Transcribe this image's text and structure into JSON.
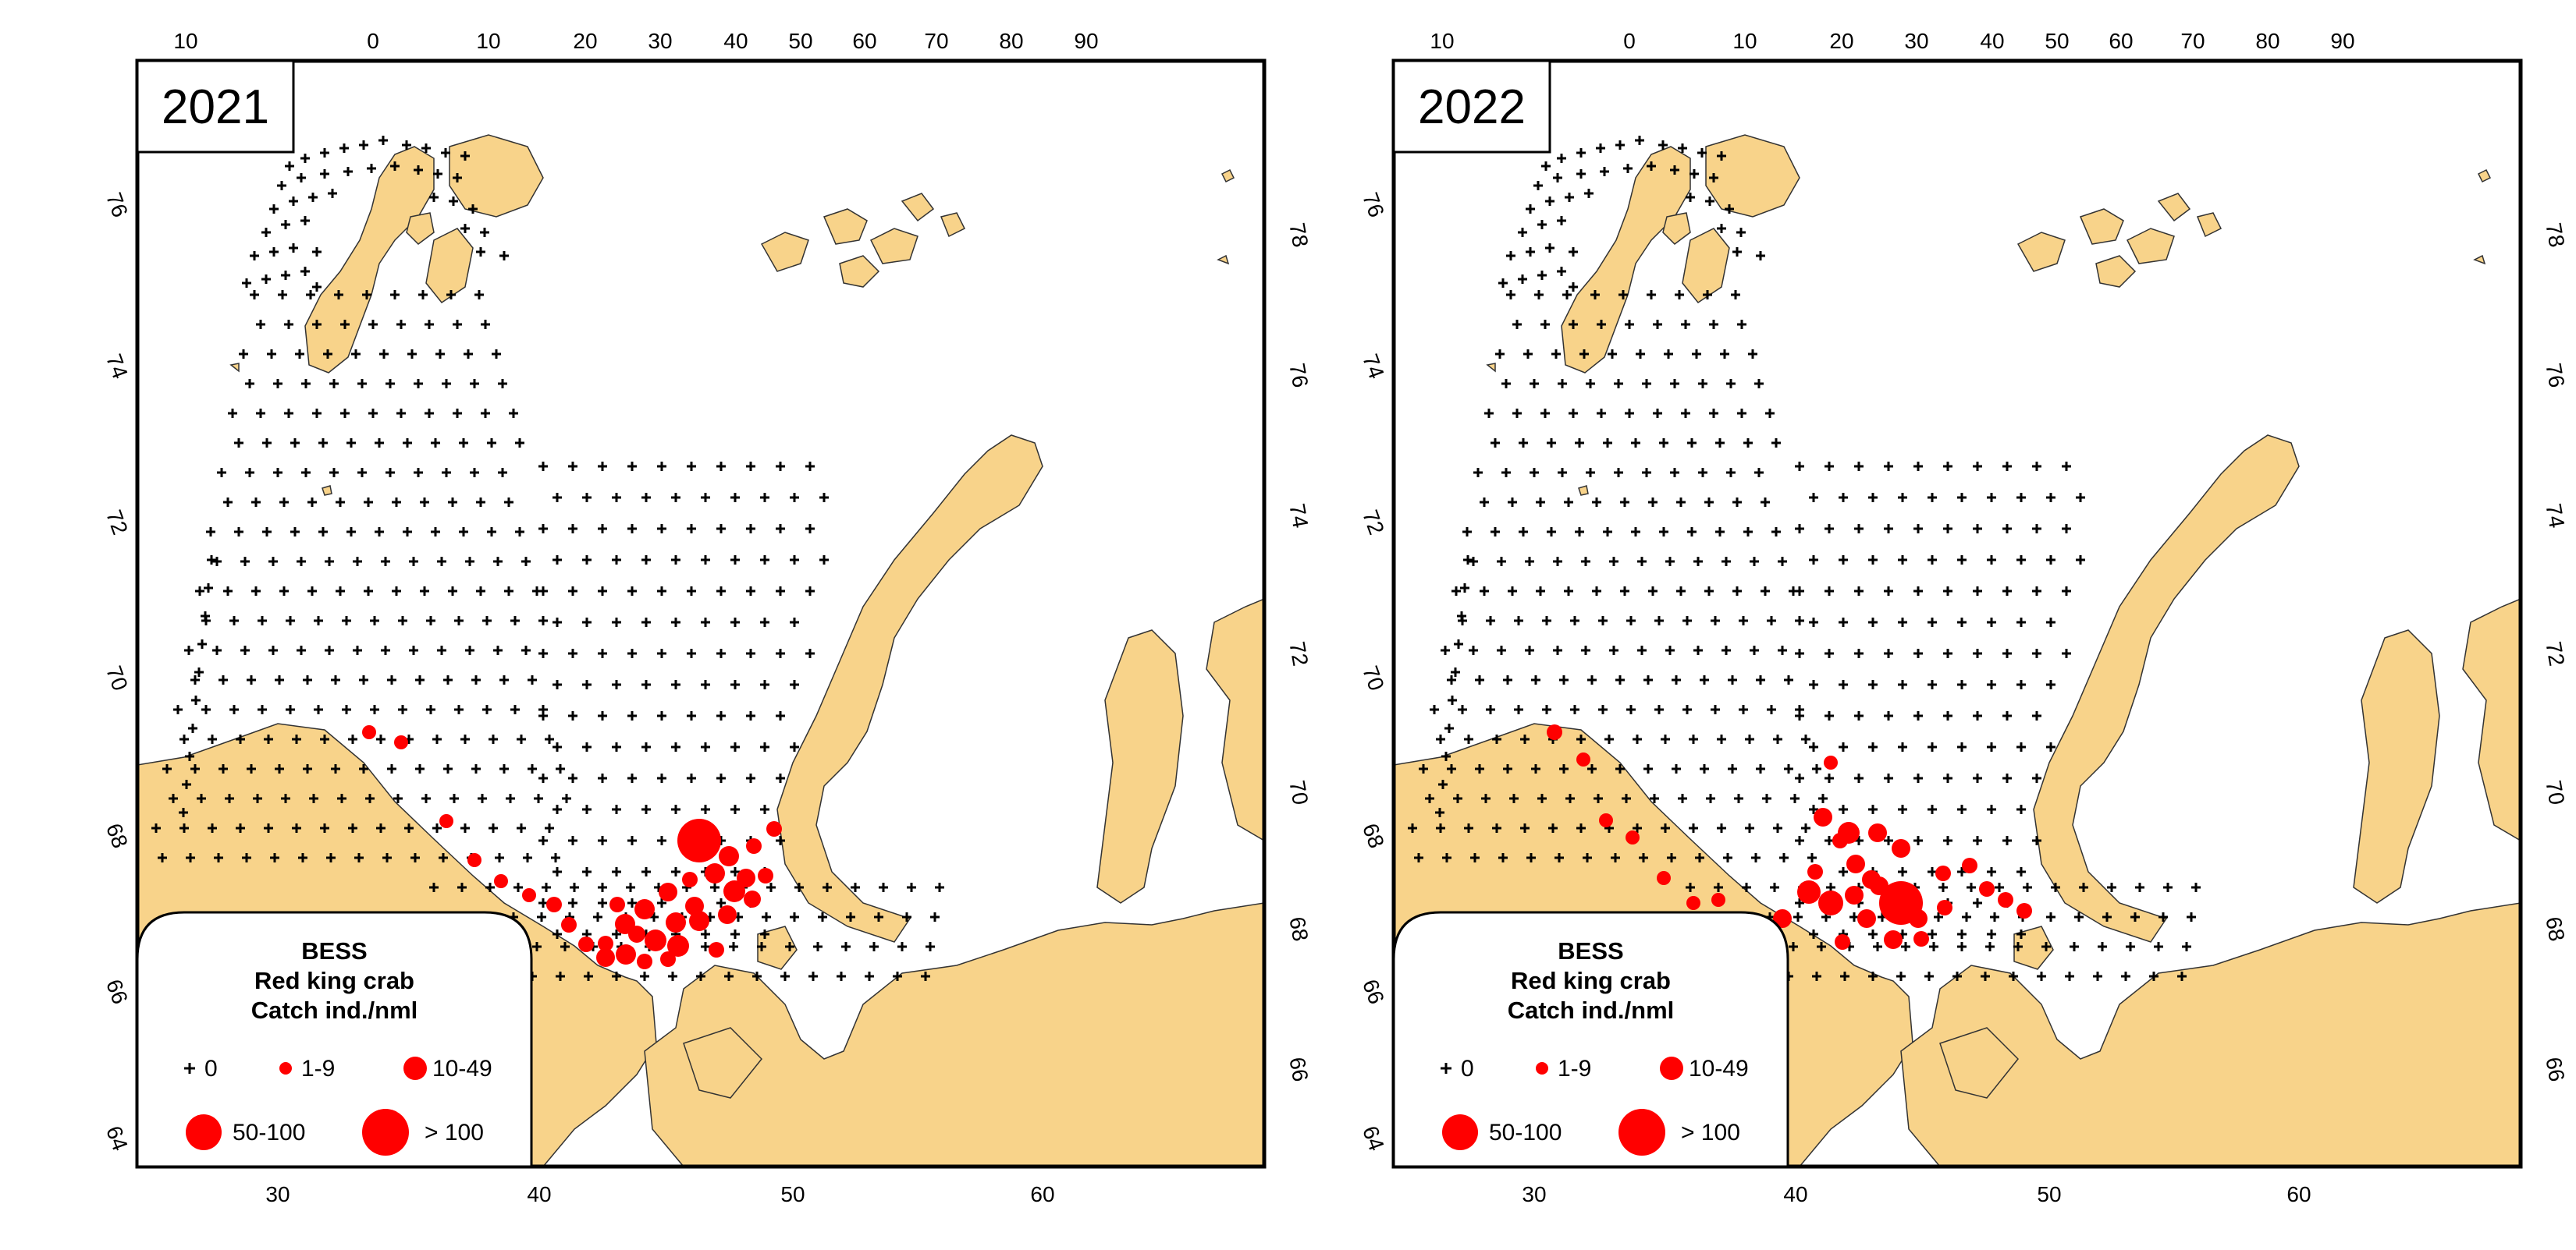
{
  "panels": [
    {
      "year": "2021",
      "legend": {
        "title": [
          "BESS",
          "Red king crab",
          "Catch ind./nml"
        ],
        "items": [
          "0",
          "1-9",
          "10-49",
          "50-100",
          "> 100"
        ]
      },
      "top_ticks": [
        "10",
        "0",
        "10",
        "20",
        "30",
        "40",
        "50",
        "60",
        "70",
        "80",
        "90"
      ],
      "bottom_ticks": [
        "30",
        "40",
        "50",
        "60"
      ],
      "left_ticks": [
        "76",
        "74",
        "72",
        "70",
        "68",
        "66",
        "64"
      ],
      "right_ticks": [
        "78",
        "76",
        "74",
        "72",
        "70",
        "68",
        "66"
      ]
    },
    {
      "year": "2022",
      "legend": {
        "title": [
          "BESS",
          "Red king crab",
          "Catch ind./nml"
        ],
        "items": [
          "0",
          "1-9",
          "10-49",
          "50-100",
          "> 100"
        ]
      },
      "top_ticks": [
        "10",
        "0",
        "10",
        "20",
        "30",
        "40",
        "50",
        "60",
        "70",
        "80",
        "90"
      ],
      "bottom_ticks": [
        "30",
        "40",
        "50",
        "60"
      ],
      "left_ticks": [
        "76",
        "74",
        "72",
        "70",
        "68",
        "66",
        "64"
      ],
      "right_ticks": [
        "78",
        "76",
        "74",
        "72",
        "70",
        "68",
        "66"
      ]
    }
  ],
  "colors": {
    "land": "#F8D38A",
    "catch": "#FF0000",
    "zero": "#000000"
  }
}
